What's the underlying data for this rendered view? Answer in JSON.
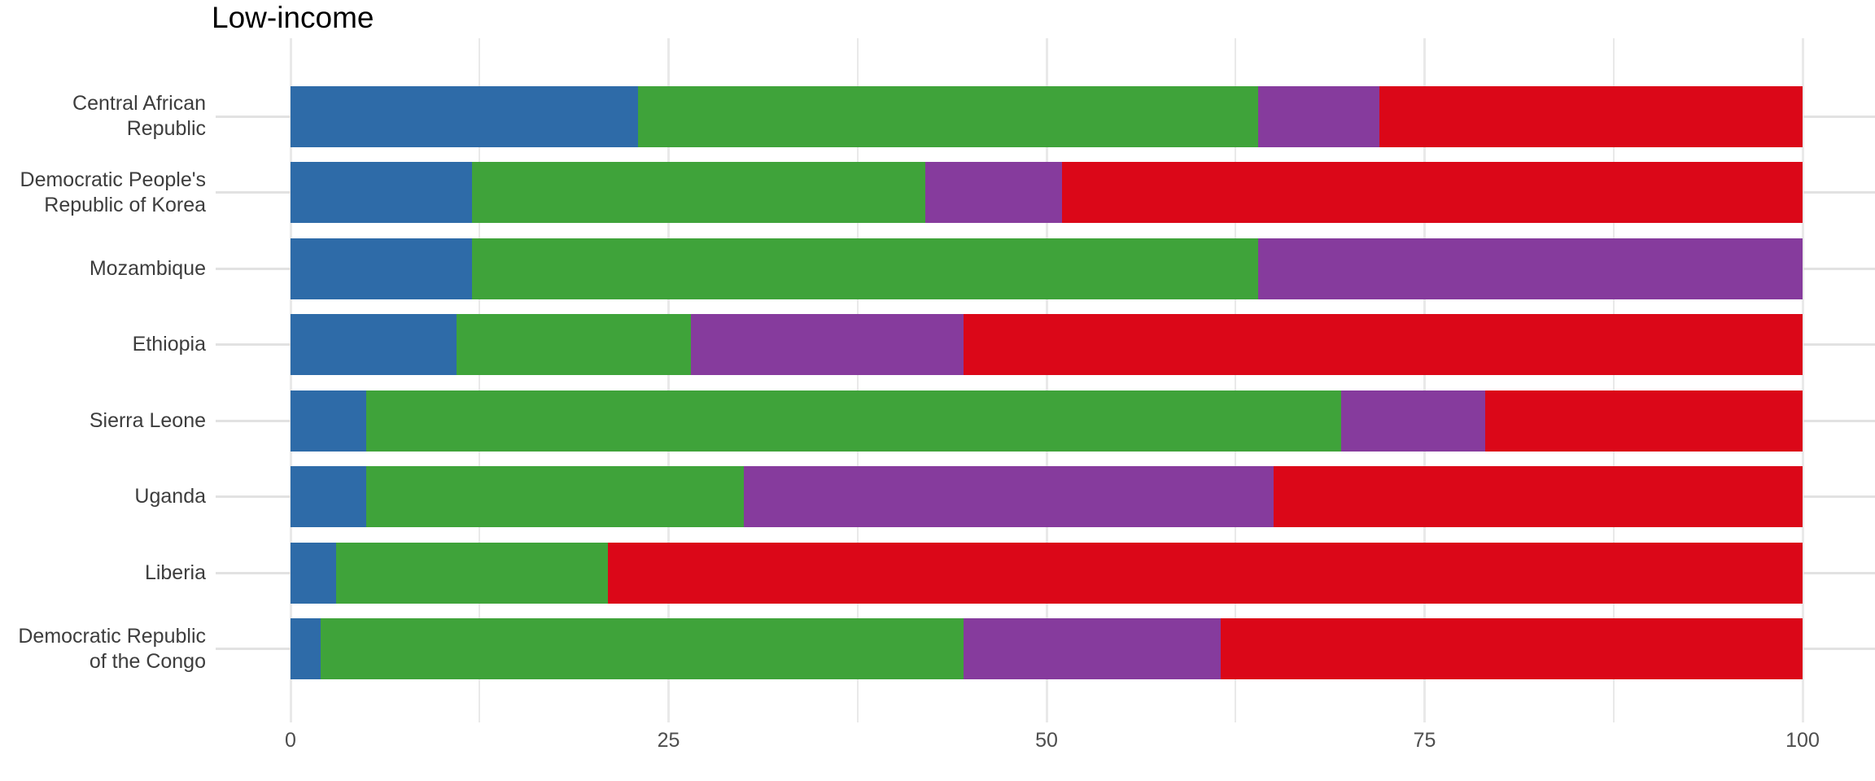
{
  "chart_data": {
    "type": "bar",
    "orientation": "horizontal",
    "stacked": true,
    "title": "Low-income",
    "categories": [
      "Central African Republic",
      "Democratic People's Republic of Korea",
      "Mozambique",
      "Ethiopia",
      "Sierra Leone",
      "Uganda",
      "Liberia",
      "Democratic Republic of the Congo"
    ],
    "category_label_lines": [
      [
        "Central African",
        "Republic"
      ],
      [
        "Democratic People's",
        "Republic of Korea"
      ],
      [
        "Mozambique"
      ],
      [
        "Ethiopia"
      ],
      [
        "Sierra Leone"
      ],
      [
        "Uganda"
      ],
      [
        "Liberia"
      ],
      [
        "Democratic Republic",
        "of the Congo"
      ]
    ],
    "series": [
      {
        "name": "blue",
        "color": "#2e6ba8",
        "values": [
          23,
          12,
          12,
          11,
          5,
          5,
          3,
          2
        ]
      },
      {
        "name": "green",
        "color": "#3fa33a",
        "values": [
          41,
          30,
          52,
          15.5,
          64.5,
          25,
          18,
          42.5
        ]
      },
      {
        "name": "purple",
        "color": "#863b9d",
        "values": [
          8,
          9,
          36,
          18,
          9.5,
          35,
          0,
          17
        ]
      },
      {
        "name": "red",
        "color": "#db0718",
        "values": [
          28,
          49,
          0,
          55.5,
          21,
          35,
          79,
          38.5
        ]
      }
    ],
    "x_axis": {
      "tick_labels": [
        "0",
        "25",
        "50",
        "75",
        "100"
      ],
      "tick_values": [
        0,
        25,
        50,
        75,
        100
      ],
      "minor_step": 12.5,
      "xlim": [
        0,
        100
      ]
    },
    "legend": "none",
    "grid": "on",
    "style": {
      "background": "#ffffff",
      "vertical_gridline_color": "#e9e9e9",
      "row_gridline_color": "#e2e2e2",
      "title_color": "#000000",
      "axis_text_color": "#4d4d4d",
      "category_text_color": "#3d3d3d"
    }
  }
}
